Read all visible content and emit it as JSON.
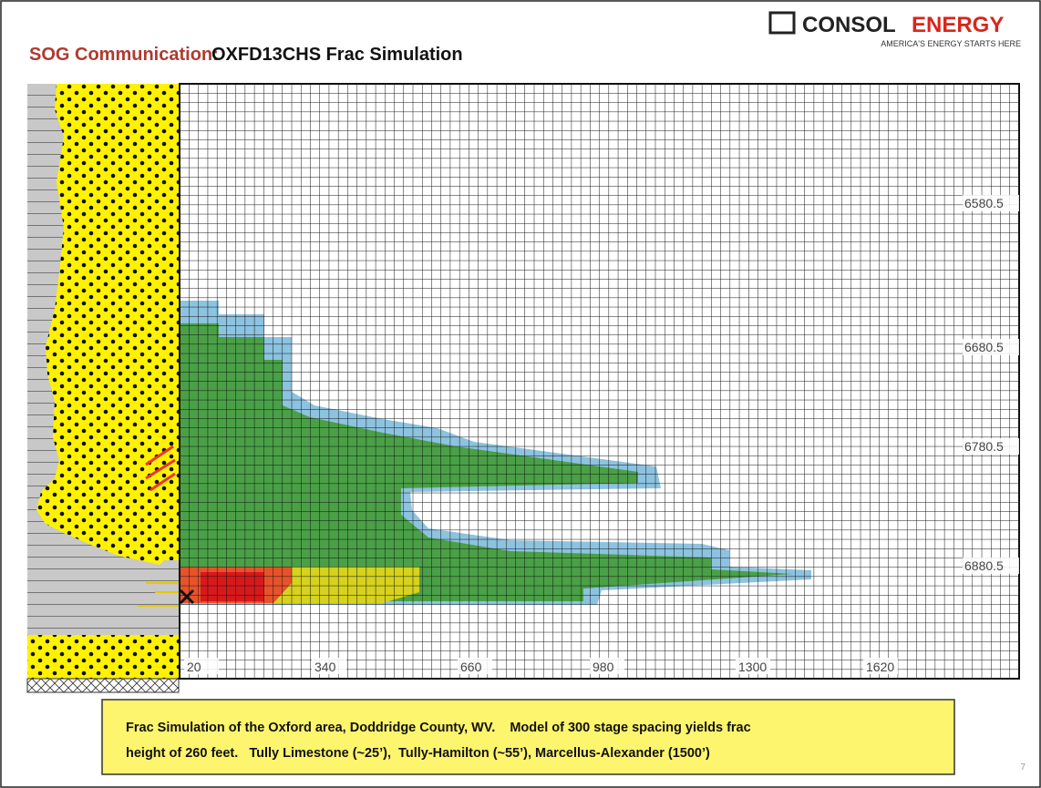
{
  "header": {
    "title_prefix": "SOG Communication:",
    "title": "OXFD13CHS Frac Simulation"
  },
  "logo": {
    "name_part1": "CONSOL",
    "name_part2": "ENERGY",
    "tagline": "AMERICA'S ENERGY STARTS HERE"
  },
  "figure": {
    "x_labels": [
      "20",
      "340",
      "660",
      "980",
      "1300",
      "1620"
    ],
    "depth_labels": [
      "6580.5",
      "6680.5",
      "6780.5",
      "6880.5"
    ]
  },
  "caption": {
    "line1": "Frac Simulation of the Oxford area, Doddridge County, WV.    Model of 300 stage spacing yields frac",
    "line2": "height of 260 feet.   Tully Limestone (~25’),  Tully-Hamilton (~55’), Marcellus-Alexander (1500’)"
  },
  "page_number": "7"
}
